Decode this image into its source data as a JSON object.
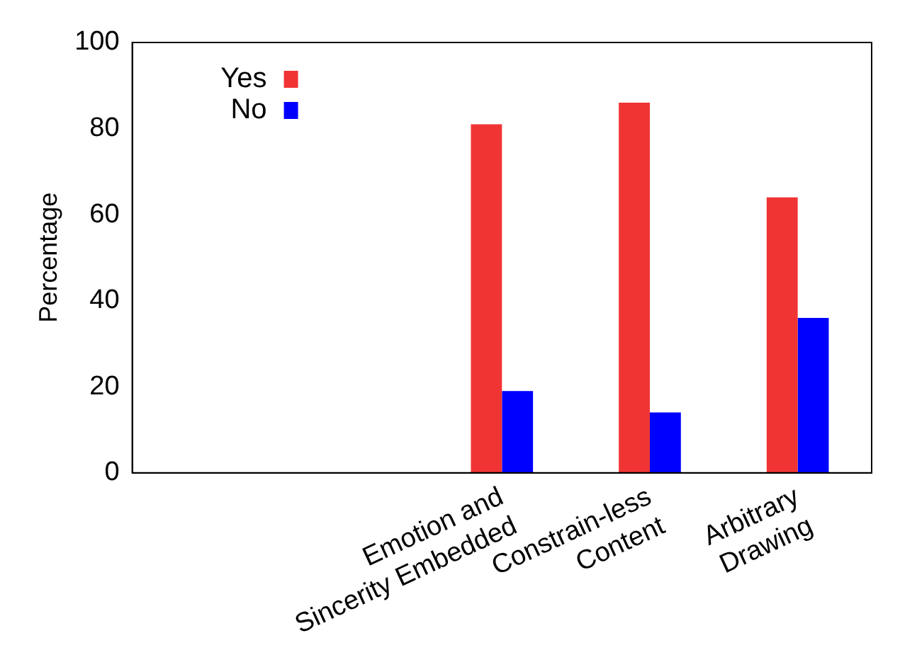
{
  "chart_data": {
    "type": "bar",
    "ylabel": "Percentage",
    "categories": [
      null,
      null,
      "Emotion and\nSincerity Embedded",
      "Constrain-less\nContent",
      "Arbitrary\nDrawing"
    ],
    "series": [
      {
        "name": "Yes",
        "color": "#f03434",
        "values": [
          null,
          null,
          81,
          86,
          64
        ]
      },
      {
        "name": "No",
        "color": "#0000ff",
        "values": [
          null,
          null,
          19,
          14,
          36
        ]
      }
    ],
    "ylim": [
      0,
      100
    ],
    "yticks": [
      0,
      20,
      40,
      60,
      80,
      100
    ],
    "grid": false,
    "legend": "top left"
  }
}
